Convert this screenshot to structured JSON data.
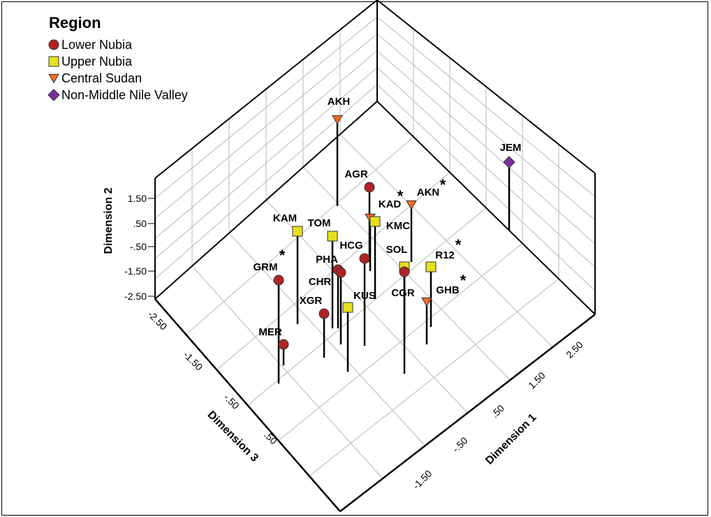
{
  "chart_data": {
    "type": "scatter",
    "title": "",
    "legend_title": "Region",
    "legend_position": "top-left",
    "series": [
      {
        "name": "Lower Nubia",
        "color": "#b22222",
        "marker": "circle"
      },
      {
        "name": "Upper Nubia",
        "color": "#e6e01e",
        "marker": "square"
      },
      {
        "name": "Central Sudan",
        "color": "#f26b21",
        "marker": "triangle-down"
      },
      {
        "name": "Non-Middle Nile Valley",
        "color": "#7b2fa0",
        "marker": "diamond"
      }
    ],
    "axes": {
      "x": {
        "label": "Dimension 1",
        "ticks": [
          "-1.50",
          "-.50",
          ".50",
          "1.50",
          "2.50"
        ]
      },
      "y": {
        "label": "Dimension 2",
        "ticks": [
          "1.50",
          ".50",
          "-.50",
          "-1.50",
          "-2.50"
        ]
      },
      "z": {
        "label": "Dimension 3",
        "ticks": [
          "-2.50",
          "-1.50",
          "-.50",
          ".50"
        ]
      }
    },
    "grid": true,
    "points": [
      {
        "label": "AKH",
        "series": "Central Sudan",
        "starred": false
      },
      {
        "label": "JEM",
        "series": "Non-Middle Nile Valley",
        "starred": false
      },
      {
        "label": "AGR",
        "series": "Lower Nubia",
        "starred": false
      },
      {
        "label": "KAD",
        "series": "Central Sudan",
        "starred": true
      },
      {
        "label": "AKN",
        "series": "Central Sudan",
        "starred": true
      },
      {
        "label": "KAM",
        "series": "Upper Nubia",
        "starred": false
      },
      {
        "label": "TOM",
        "series": "Upper Nubia",
        "starred": false
      },
      {
        "label": "KMC",
        "series": "Upper Nubia",
        "starred": false
      },
      {
        "label": "HCG",
        "series": "Lower Nubia",
        "starred": false
      },
      {
        "label": "SOL",
        "series": "Upper Nubia",
        "starred": false
      },
      {
        "label": "R12",
        "series": "Upper Nubia",
        "starred": true
      },
      {
        "label": "PHA",
        "series": "Lower Nubia",
        "starred": false
      },
      {
        "label": "GRM",
        "series": "Lower Nubia",
        "starred": true
      },
      {
        "label": "CHR",
        "series": "Lower Nubia",
        "starred": false
      },
      {
        "label": "CGR",
        "series": "Lower Nubia",
        "starred": false
      },
      {
        "label": "GHB",
        "series": "Central Sudan",
        "starred": true
      },
      {
        "label": "KUS",
        "series": "Upper Nubia",
        "starred": false
      },
      {
        "label": "XGR",
        "series": "Lower Nubia",
        "starred": false
      },
      {
        "label": "MER",
        "series": "Lower Nubia",
        "starred": false
      }
    ],
    "star_symbol": "*"
  }
}
